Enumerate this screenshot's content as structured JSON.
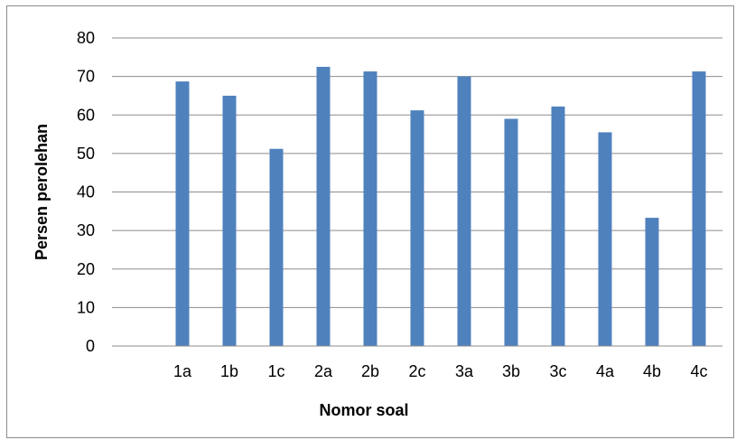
{
  "chart_data": {
    "type": "bar",
    "title": "",
    "xlabel": "Nomor soal",
    "ylabel": "Persen perolehan",
    "categories": [
      "1a",
      "1b",
      "1c",
      "2a",
      "2b",
      "2c",
      "3a",
      "3b",
      "3c",
      "4a",
      "4b",
      "4c"
    ],
    "values": [
      68.7,
      65.0,
      51.2,
      72.5,
      71.3,
      61.2,
      70.0,
      59.0,
      62.2,
      55.5,
      33.3,
      71.3
    ],
    "ylim": [
      0,
      80
    ],
    "yticks": [
      0,
      10,
      20,
      30,
      40,
      50,
      60,
      70,
      80
    ],
    "grid": true,
    "legend": "none",
    "bar_color": "#4f81bd"
  }
}
